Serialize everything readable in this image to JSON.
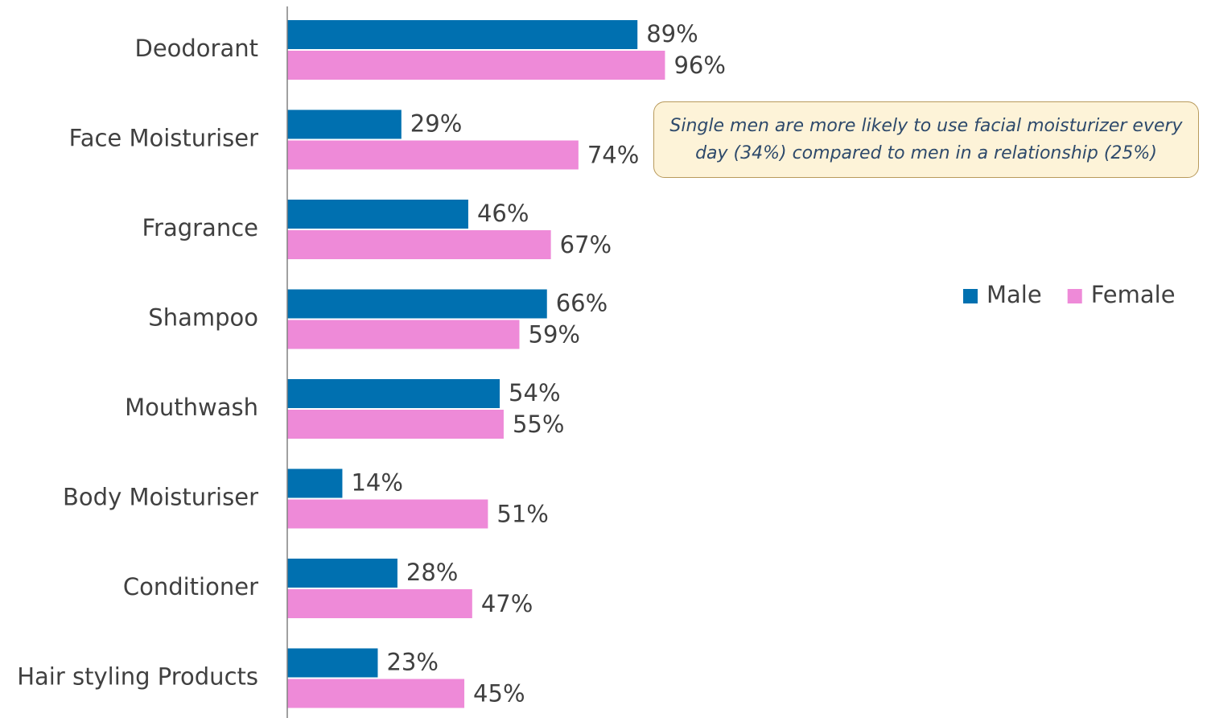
{
  "chart_data": {
    "type": "hbar",
    "categories": [
      "Deodorant",
      "Face Moisturiser",
      "Fragrance",
      "Shampoo",
      "Mouthwash",
      "Body Moisturiser",
      "Conditioner",
      "Hair styling Products"
    ],
    "series": [
      {
        "name": "Male",
        "color": "#0070b0",
        "values": [
          89,
          29,
          46,
          66,
          54,
          14,
          28,
          23
        ],
        "value_labels": [
          "89%",
          "29%",
          "46%",
          "66%",
          "54%",
          "14%",
          "28%",
          "23%"
        ]
      },
      {
        "name": "Female",
        "color": "#ee8ad8",
        "values": [
          96,
          74,
          67,
          59,
          55,
          51,
          47,
          45
        ],
        "value_labels": [
          "96%",
          "74%",
          "67%",
          "59%",
          "55%",
          "51%",
          "47%",
          "45%"
        ]
      }
    ],
    "xlim": [
      0,
      100
    ],
    "legend": "right",
    "annotation": "Single men are more likely to use facial moisturizer every day (34%) compared to men in a relationship (25%)"
  }
}
